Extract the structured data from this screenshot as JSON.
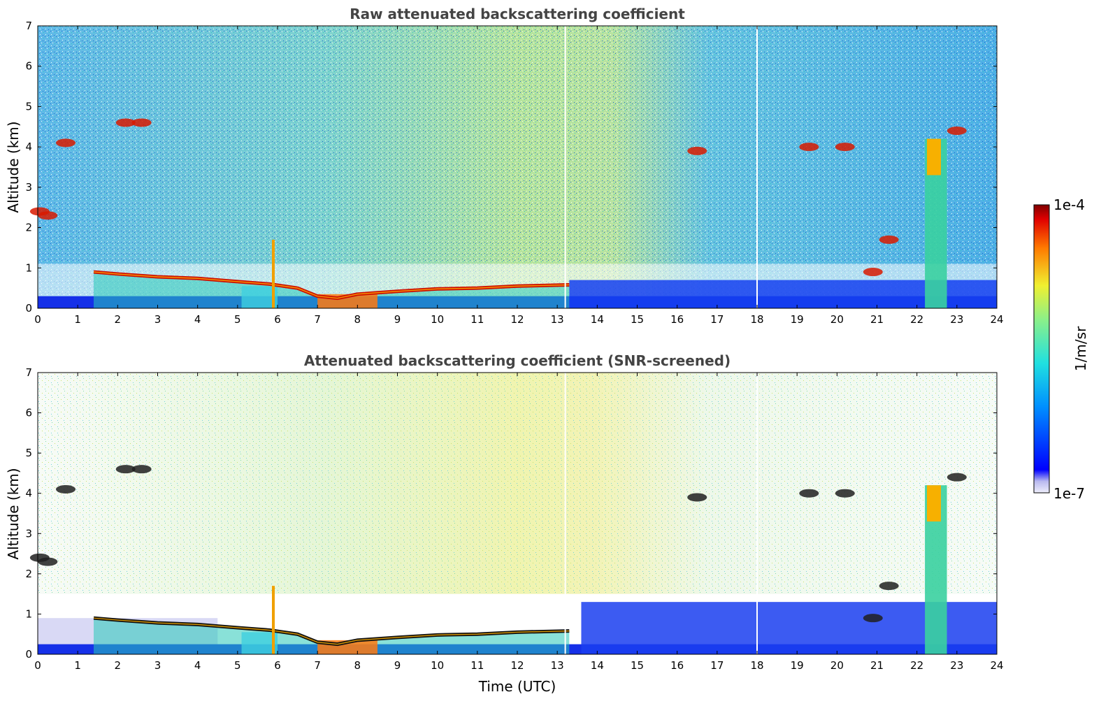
{
  "figure": {
    "xlabel": "Time (UTC)",
    "colorbar": {
      "label": "1/m/sr",
      "max_label": "1e-4",
      "min_label": "1e-7",
      "vmin": 1e-07,
      "vmax": 0.0001,
      "scale": "log",
      "colormap": "jet (white-lavender at lowest values)"
    }
  },
  "chart_data": [
    {
      "type": "heatmap",
      "panel": "raw",
      "title": "Raw attenuated backscattering coefficient",
      "xlabel": "",
      "ylabel": "Altitude (km)",
      "xlim": [
        0,
        24
      ],
      "ylim": [
        0,
        7
      ],
      "xticks": [
        "0",
        "1",
        "2",
        "3",
        "4",
        "5",
        "6",
        "7",
        "8",
        "9",
        "10",
        "11",
        "12",
        "13",
        "14",
        "15",
        "16",
        "17",
        "18",
        "19",
        "20",
        "21",
        "22",
        "23",
        "24"
      ],
      "yticks": [
        "0",
        "1",
        "2",
        "3",
        "4",
        "5",
        "6",
        "7"
      ],
      "background_colors": [
        "#2a8bd8",
        "#4fd1c5",
        "#ffffff"
      ],
      "boundary_layer_top_km": {
        "time": [
          1.4,
          2,
          3,
          4,
          5,
          5.8,
          6.5,
          7,
          7.5,
          8,
          9,
          10,
          11,
          12,
          13.3
        ],
        "altitude": [
          0.9,
          0.85,
          0.78,
          0.74,
          0.66,
          0.6,
          0.5,
          0.3,
          0.25,
          0.35,
          0.42,
          0.48,
          0.5,
          0.55,
          0.58
        ]
      },
      "white_gaps_utc": [
        13.2,
        18.0
      ]
    },
    {
      "type": "heatmap",
      "panel": "screened",
      "title": "Attenuated backscattering coefficient (SNR-screened)",
      "xlabel": "Time (UTC)",
      "ylabel": "Altitude (km)",
      "xlim": [
        0,
        24
      ],
      "ylim": [
        0,
        7
      ],
      "xticks": [
        "0",
        "1",
        "2",
        "3",
        "4",
        "5",
        "6",
        "7",
        "8",
        "9",
        "10",
        "11",
        "12",
        "13",
        "14",
        "15",
        "16",
        "17",
        "18",
        "19",
        "20",
        "21",
        "22",
        "23",
        "24"
      ],
      "yticks": [
        "0",
        "1",
        "2",
        "3",
        "4",
        "5",
        "6",
        "7"
      ],
      "background_colors": [
        "#ffffff",
        "#9ee6b8",
        "#f2ef6a"
      ],
      "boundary_layer_top_km": {
        "time": [
          1.4,
          2,
          3,
          4,
          5,
          5.8,
          6.5,
          7,
          7.5,
          8,
          9,
          10,
          11,
          12,
          13.3
        ],
        "altitude": [
          0.9,
          0.85,
          0.78,
          0.74,
          0.66,
          0.6,
          0.5,
          0.3,
          0.25,
          0.35,
          0.42,
          0.48,
          0.5,
          0.55,
          0.58
        ]
      },
      "white_gaps_utc": [
        13.2,
        18.0
      ]
    }
  ]
}
